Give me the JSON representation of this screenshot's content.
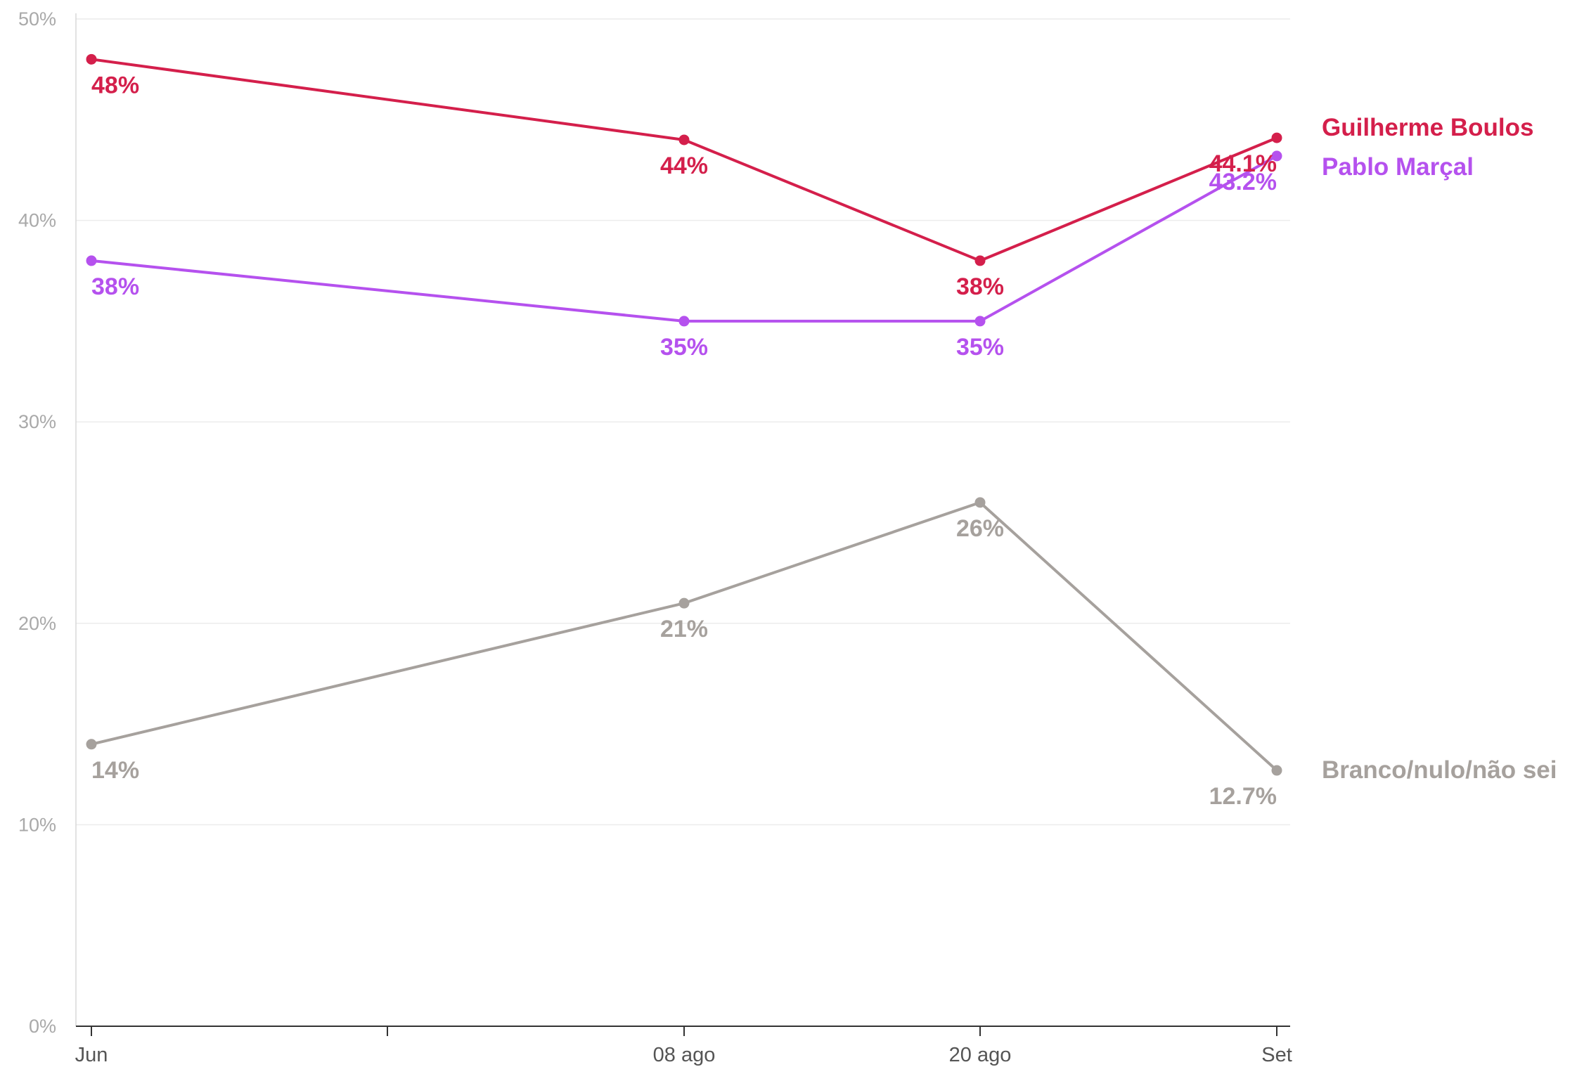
{
  "chart_data": {
    "type": "line",
    "title": "",
    "xlabel": "",
    "ylabel": "",
    "ylim": [
      0,
      50
    ],
    "yticks": [
      {
        "value": 0,
        "label": "0%"
      },
      {
        "value": 10,
        "label": "10%"
      },
      {
        "value": 20,
        "label": "20%"
      },
      {
        "value": 30,
        "label": "30%"
      },
      {
        "value": 40,
        "label": "40%"
      },
      {
        "value": 50,
        "label": "50%"
      }
    ],
    "xticks": [
      "Jun",
      "",
      "08 ago",
      "20 ago",
      "Set"
    ],
    "grid": true,
    "legend": "right, direct labels at line ends",
    "series": [
      {
        "name": "Guilherme Boulos",
        "color": "#d41f4b",
        "points": [
          {
            "x": "Jun",
            "y": 48,
            "label": "48%"
          },
          {
            "x": "08 ago",
            "y": 44,
            "label": "44%"
          },
          {
            "x": "20 ago",
            "y": 38,
            "label": "38%"
          },
          {
            "x": "Set",
            "y": 44.1,
            "label": "44.1%"
          }
        ]
      },
      {
        "name": "Pablo Marçal",
        "color": "#b551ee",
        "points": [
          {
            "x": "Jun",
            "y": 38,
            "label": "38%"
          },
          {
            "x": "08 ago",
            "y": 35,
            "label": "35%"
          },
          {
            "x": "20 ago",
            "y": 35,
            "label": "35%"
          },
          {
            "x": "Set",
            "y": 43.2,
            "label": "43.2%"
          }
        ]
      },
      {
        "name": "Branco/nulo/não sei",
        "color": "#a6a19d",
        "points": [
          {
            "x": "Jun",
            "y": 14,
            "label": "14%"
          },
          {
            "x": "08 ago",
            "y": 21,
            "label": "21%"
          },
          {
            "x": "20 ago",
            "y": 26,
            "label": "26%"
          },
          {
            "x": "Set",
            "y": 12.7,
            "label": "12.7%"
          }
        ]
      }
    ]
  }
}
